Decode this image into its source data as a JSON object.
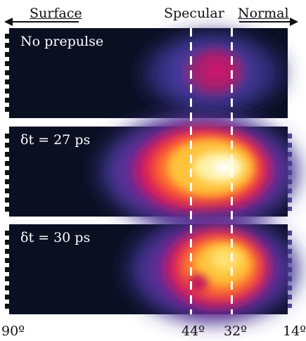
{
  "header": {
    "surface_label": "Surface",
    "specular_label": "Specular",
    "normal_label": "Normal"
  },
  "panels": [
    {
      "label": "No prepulse"
    },
    {
      "label": "δt = 27 ps"
    },
    {
      "label": "δt = 30 ps"
    }
  ],
  "axis": {
    "ticks": [
      "90º",
      "44º",
      "32º",
      "14º"
    ]
  },
  "colors": {
    "background": "#0b0f22",
    "hot": "#ffffff",
    "warm": "#ffd94a",
    "mid": "#d0186a",
    "cool": "#5a3aa8"
  }
}
